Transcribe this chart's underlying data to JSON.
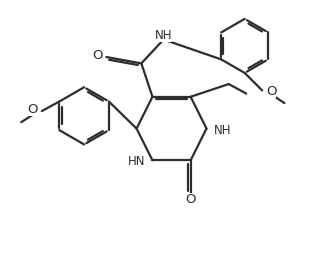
{
  "bg_color": "#ffffff",
  "line_color": "#2d2d2d",
  "line_width": 1.6,
  "font_size": 8.5,
  "figsize": [
    3.24,
    2.73
  ],
  "dpi": 100,
  "xlim": [
    0,
    10
  ],
  "ylim": [
    0,
    8.5
  ]
}
